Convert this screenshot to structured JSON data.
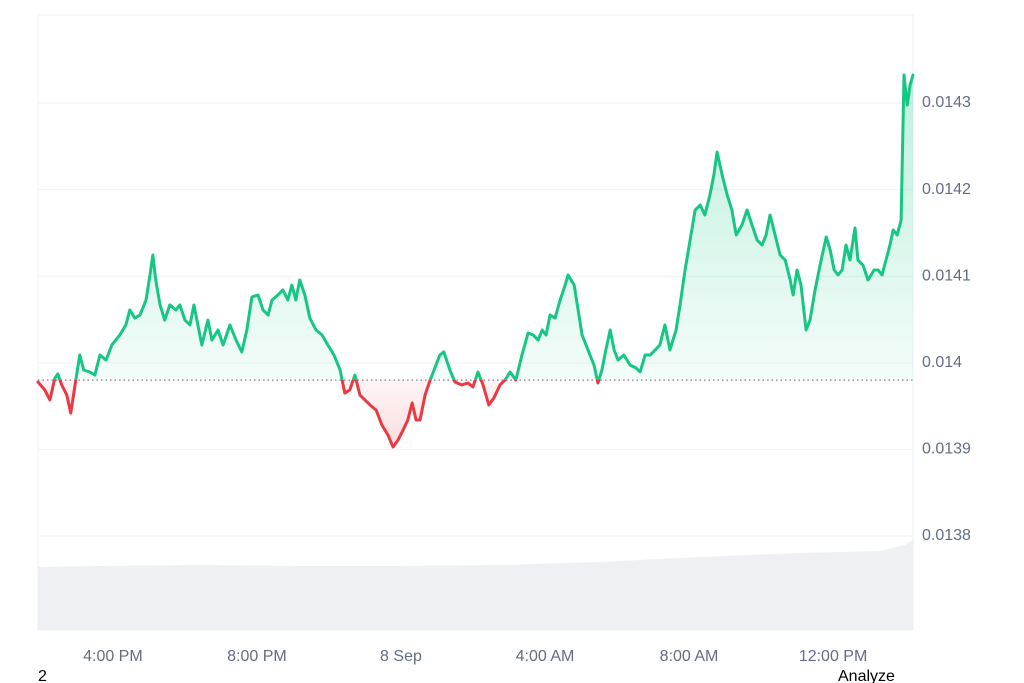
{
  "chart_data": {
    "type": "line",
    "x": [
      13.92,
      14.11,
      14.25,
      14.39,
      14.47,
      14.58,
      14.72,
      14.83,
      14.97,
      15.08,
      15.19,
      15.36,
      15.5,
      15.64,
      15.81,
      15.97,
      16.19,
      16.36,
      16.47,
      16.61,
      16.75,
      16.92,
      17.03,
      17.11,
      17.19,
      17.31,
      17.44,
      17.58,
      17.75,
      17.86,
      18.0,
      18.14,
      18.25,
      18.36,
      18.47,
      18.64,
      18.75,
      18.92,
      19.06,
      19.25,
      19.42,
      19.58,
      19.72,
      19.86,
      20.03,
      20.17,
      20.31,
      20.42,
      20.58,
      20.72,
      20.86,
      20.97,
      21.08,
      21.19,
      21.33,
      21.47,
      21.64,
      21.81,
      21.97,
      22.14,
      22.31,
      22.44,
      22.58,
      22.72,
      22.86,
      23.0,
      23.14,
      23.31,
      23.47,
      23.64,
      23.78,
      23.92,
      24.06,
      24.19,
      24.31,
      24.42,
      24.53,
      24.67,
      24.81,
      24.92,
      25.08,
      25.19,
      25.36,
      25.5,
      25.69,
      25.86,
      26.0,
      26.14,
      26.28,
      26.44,
      26.58,
      26.75,
      26.89,
      27.03,
      27.19,
      27.36,
      27.53,
      27.67,
      27.81,
      27.92,
      28.03,
      28.14,
      28.28,
      28.42,
      28.56,
      28.64,
      28.81,
      28.92,
      29.03,
      29.14,
      29.25,
      29.36,
      29.47,
      29.58,
      29.69,
      29.81,
      29.92,
      30.03,
      30.19,
      30.36,
      30.53,
      30.64,
      30.78,
      30.92,
      31.06,
      31.19,
      31.33,
      31.47,
      31.64,
      31.75,
      31.89,
      32.03,
      32.17,
      32.31,
      32.44,
      32.58,
      32.69,
      32.78,
      32.92,
      33.06,
      33.19,
      33.31,
      33.47,
      33.61,
      33.75,
      33.89,
      34.03,
      34.14,
      34.25,
      34.39,
      34.53,
      34.67,
      34.81,
      34.89,
      35.0,
      35.11,
      35.25,
      35.36,
      35.5,
      35.64,
      35.81,
      35.92,
      36.03,
      36.14,
      36.25,
      36.36,
      36.47,
      36.61,
      36.69,
      36.83,
      36.97,
      37.14,
      37.25,
      37.36,
      37.47,
      37.58,
      37.67,
      37.78,
      37.89,
      37.97,
      38.06,
      38.14,
      38.22
    ],
    "series": [
      {
        "values": [
          0.0139778,
          0.0139686,
          0.0139571,
          0.0139825,
          0.0139871,
          0.0139744,
          0.0139628,
          0.013942,
          0.0139801,
          0.014009,
          0.0139917,
          0.0139894,
          0.0139859,
          0.014009,
          0.0140032,
          0.0140206,
          0.0140321,
          0.0140437,
          0.014061,
          0.0140517,
          0.0140552,
          0.0140725,
          0.0141014,
          0.0141245,
          0.0140956,
          0.0140668,
          0.0140494,
          0.0140668,
          0.014061,
          0.0140668,
          0.0140494,
          0.0140437,
          0.0140668,
          0.0140437,
          0.0140206,
          0.0140494,
          0.0140263,
          0.0140379,
          0.0140206,
          0.0140437,
          0.0140263,
          0.0140125,
          0.0140379,
          0.014076,
          0.0140783,
          0.014061,
          0.0140552,
          0.0140725,
          0.0140783,
          0.0140841,
          0.0140725,
          0.0140898,
          0.0140725,
          0.0140956,
          0.0140783,
          0.0140517,
          0.0140379,
          0.0140321,
          0.0140206,
          0.014009,
          0.0139917,
          0.0139651,
          0.0139686,
          0.0139859,
          0.0139628,
          0.0139571,
          0.0139513,
          0.0139455,
          0.0139282,
          0.0139166,
          0.0139028,
          0.0139109,
          0.0139224,
          0.013934,
          0.0139536,
          0.013934,
          0.013934,
          0.0139628,
          0.0139801,
          0.0139917,
          0.014009,
          0.0140125,
          0.0139917,
          0.0139778,
          0.0139744,
          0.0139767,
          0.0139721,
          0.0139894,
          0.0139744,
          0.0139513,
          0.0139594,
          0.0139744,
          0.0139801,
          0.0139894,
          0.0139801,
          0.014009,
          0.0140344,
          0.0140321,
          0.0140263,
          0.0140379,
          0.0140321,
          0.0140552,
          0.0140517,
          0.0140725,
          0.0140898,
          0.0141014,
          0.0140898,
          0.014061,
          0.0140321,
          0.0140206,
          0.014009,
          0.0139975,
          0.0139767,
          0.0139917,
          0.0140148,
          0.0140379,
          0.0140148,
          0.0140032,
          0.014009,
          0.0139975,
          0.013994,
          0.0139894,
          0.014009,
          0.014009,
          0.0140148,
          0.0140206,
          0.0140437,
          0.0140148,
          0.0140379,
          0.0140668,
          0.0141072,
          0.0141418,
          0.0141764,
          0.0141822,
          0.0141707,
          0.0141938,
          0.0142169,
          0.0142434,
          0.0142169,
          0.0141938,
          0.0141764,
          0.0141476,
          0.0141591,
          0.0141764,
          0.0141591,
          0.0141418,
          0.014136,
          0.0141476,
          0.0141707,
          0.0141476,
          0.0141245,
          0.0141187,
          0.0140956,
          0.0140783,
          0.0141072,
          0.0140898,
          0.0140379,
          0.0140494,
          0.0140841,
          0.0141129,
          0.0141453,
          0.0141303,
          0.0141072,
          0.0141014,
          0.0141072,
          0.014136,
          0.0141187,
          0.0141557,
          0.0141187,
          0.0141129,
          0.0140956,
          0.0141072,
          0.0141072,
          0.0141014,
          0.0141187,
          0.014136,
          0.0141534,
          0.0141476,
          0.0141649,
          0.0143323,
          0.0142977,
          0.0143208,
          0.0143323
        ]
      }
    ],
    "baseline": 0.01398,
    "up_color": "#16c784",
    "down_color": "#ea3943",
    "xlim": [
      13.92,
      38.22
    ],
    "xticks": [
      {
        "value": 16,
        "label": "4:00 PM"
      },
      {
        "value": 20,
        "label": "8:00 PM"
      },
      {
        "value": 24,
        "label": "8 Sep"
      },
      {
        "value": 28,
        "label": "4:00 AM"
      },
      {
        "value": 32,
        "label": "8:00 AM"
      },
      {
        "value": 36,
        "label": "12:00 PM"
      }
    ],
    "ylim": [
      0.0136915,
      0.0144016
    ],
    "yticks": [
      0.0138,
      0.0139,
      0.014,
      0.0141,
      0.0142,
      0.0143
    ],
    "grid": true
  },
  "footer": {
    "left": "2",
    "right": "Analyze"
  }
}
